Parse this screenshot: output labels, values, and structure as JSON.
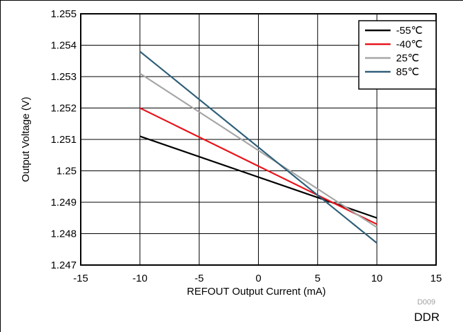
{
  "chart_data": {
    "type": "line",
    "xlabel": "REFOUT Output Current (mA)",
    "ylabel": "Output Voltage (V)",
    "xlim": [
      -15,
      15
    ],
    "ylim": [
      1.247,
      1.255
    ],
    "xticks": [
      -15,
      -10,
      -5,
      0,
      5,
      10,
      15
    ],
    "xtick_labels": [
      "-15",
      "-10",
      "-5",
      "0",
      "5",
      "10",
      "15"
    ],
    "yticks": [
      1.247,
      1.248,
      1.249,
      1.25,
      1.251,
      1.252,
      1.253,
      1.254,
      1.255
    ],
    "ytick_labels": [
      "1.247",
      "1.248",
      "1.249",
      "1.25",
      "1.251",
      "1.252",
      "1.253",
      "1.254",
      "1.255"
    ],
    "grid": true,
    "legend_position": "top-right",
    "series": [
      {
        "name": "-55℃",
        "color": "#000000",
        "x": [
          -10,
          10
        ],
        "y": [
          1.2511,
          1.2485
        ]
      },
      {
        "name": "-40℃",
        "color": "#e8141b",
        "x": [
          -10,
          10
        ],
        "y": [
          1.252,
          1.2483
        ]
      },
      {
        "name": "25℃",
        "color": "#a6a6a6",
        "x": [
          -10,
          10
        ],
        "y": [
          1.2531,
          1.2482
        ]
      },
      {
        "name": "85℃",
        "color": "#2f5f78",
        "x": [
          -10,
          10
        ],
        "y": [
          1.2538,
          1.2477
        ]
      }
    ]
  },
  "figure_id": "D009",
  "footer_label": "DDR"
}
